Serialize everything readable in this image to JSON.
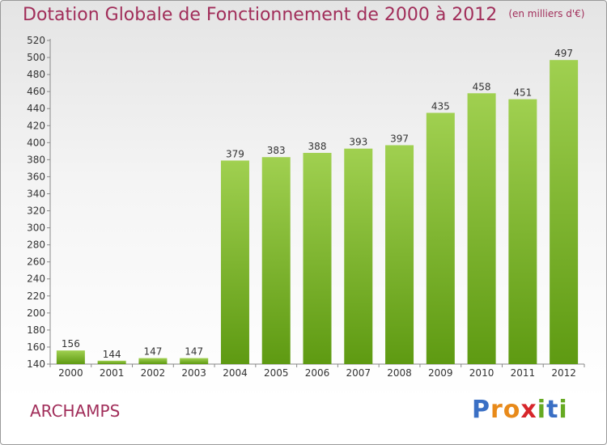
{
  "header": {
    "title": "Dotation Globale de Fonctionnement de 2000 à 2012",
    "subtitle": "(en milliers d'€)"
  },
  "commune": "ARCHAMPS",
  "logo": {
    "letters": [
      "P",
      "r",
      "o",
      "x",
      "i",
      "t",
      "i"
    ]
  },
  "colors": {
    "bar_top": "#a0d050",
    "bar_bottom": "#5e9a12",
    "title": "#a12e5a"
  },
  "chart_data": {
    "type": "bar",
    "title": "Dotation Globale de Fonctionnement de 2000 à 2012",
    "subtitle": "(en milliers d'€)",
    "categories": [
      "2000",
      "2001",
      "2002",
      "2003",
      "2004",
      "2005",
      "2006",
      "2007",
      "2008",
      "2009",
      "2010",
      "2011",
      "2012"
    ],
    "values": [
      156,
      144,
      147,
      147,
      379,
      383,
      388,
      393,
      397,
      435,
      458,
      451,
      497
    ],
    "ylim": [
      140,
      520
    ],
    "ytick_step": 20,
    "grid": false,
    "legend": false
  }
}
